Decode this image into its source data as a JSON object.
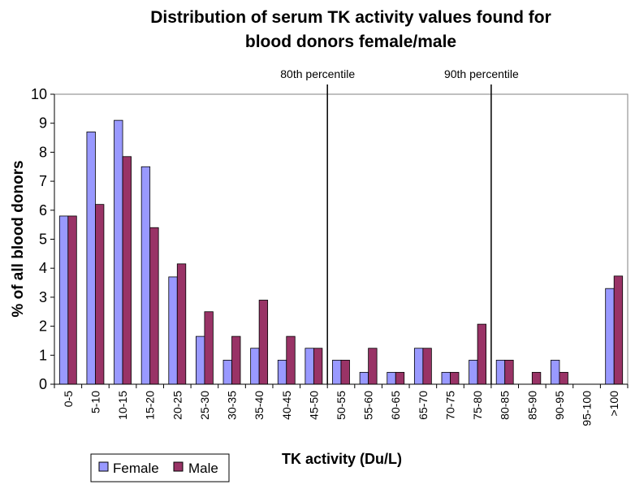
{
  "chart_data": {
    "type": "bar",
    "title_line1": "Distribution of serum TK activity values found for",
    "title_line2": "blood donors female/male",
    "xlabel": "TK activity (Du/L)",
    "ylabel": "% of all blood donors",
    "ylim": [
      0,
      10
    ],
    "yticks": [
      "0",
      "1",
      "2",
      "3",
      "4",
      "5",
      "6",
      "7",
      "8",
      "9",
      "10"
    ],
    "grid": false,
    "legend_position": "bottom-left",
    "categories": [
      "0-5",
      "5-10",
      "10-15",
      "15-20",
      "20-25",
      "25-30",
      "30-35",
      "35-40",
      "40-45",
      "45-50",
      "50-55",
      "55-60",
      "60-65",
      "65-70",
      "70-75",
      "75-80",
      "80-85",
      "85-90",
      "90-95",
      "95-100",
      ">100"
    ],
    "series": [
      {
        "name": "Female",
        "color": "#9999ff",
        "values": [
          5.8,
          8.7,
          9.1,
          7.5,
          3.7,
          1.65,
          0.83,
          1.24,
          0.83,
          1.24,
          0.83,
          0.41,
          0.41,
          1.24,
          0.41,
          0.83,
          0.83,
          0,
          0.83,
          0,
          3.3
        ]
      },
      {
        "name": "Male",
        "color": "#993366",
        "values": [
          5.8,
          6.2,
          7.85,
          5.4,
          4.15,
          2.5,
          1.65,
          2.9,
          1.65,
          1.24,
          0.83,
          1.24,
          0.41,
          1.24,
          0.41,
          2.07,
          0.83,
          0.41,
          0.41,
          0,
          3.73
        ]
      }
    ],
    "annotations": [
      {
        "label": "80th percentile",
        "after_category_index": 9
      },
      {
        "label": "90th percentile",
        "after_category_index": 15
      }
    ]
  }
}
